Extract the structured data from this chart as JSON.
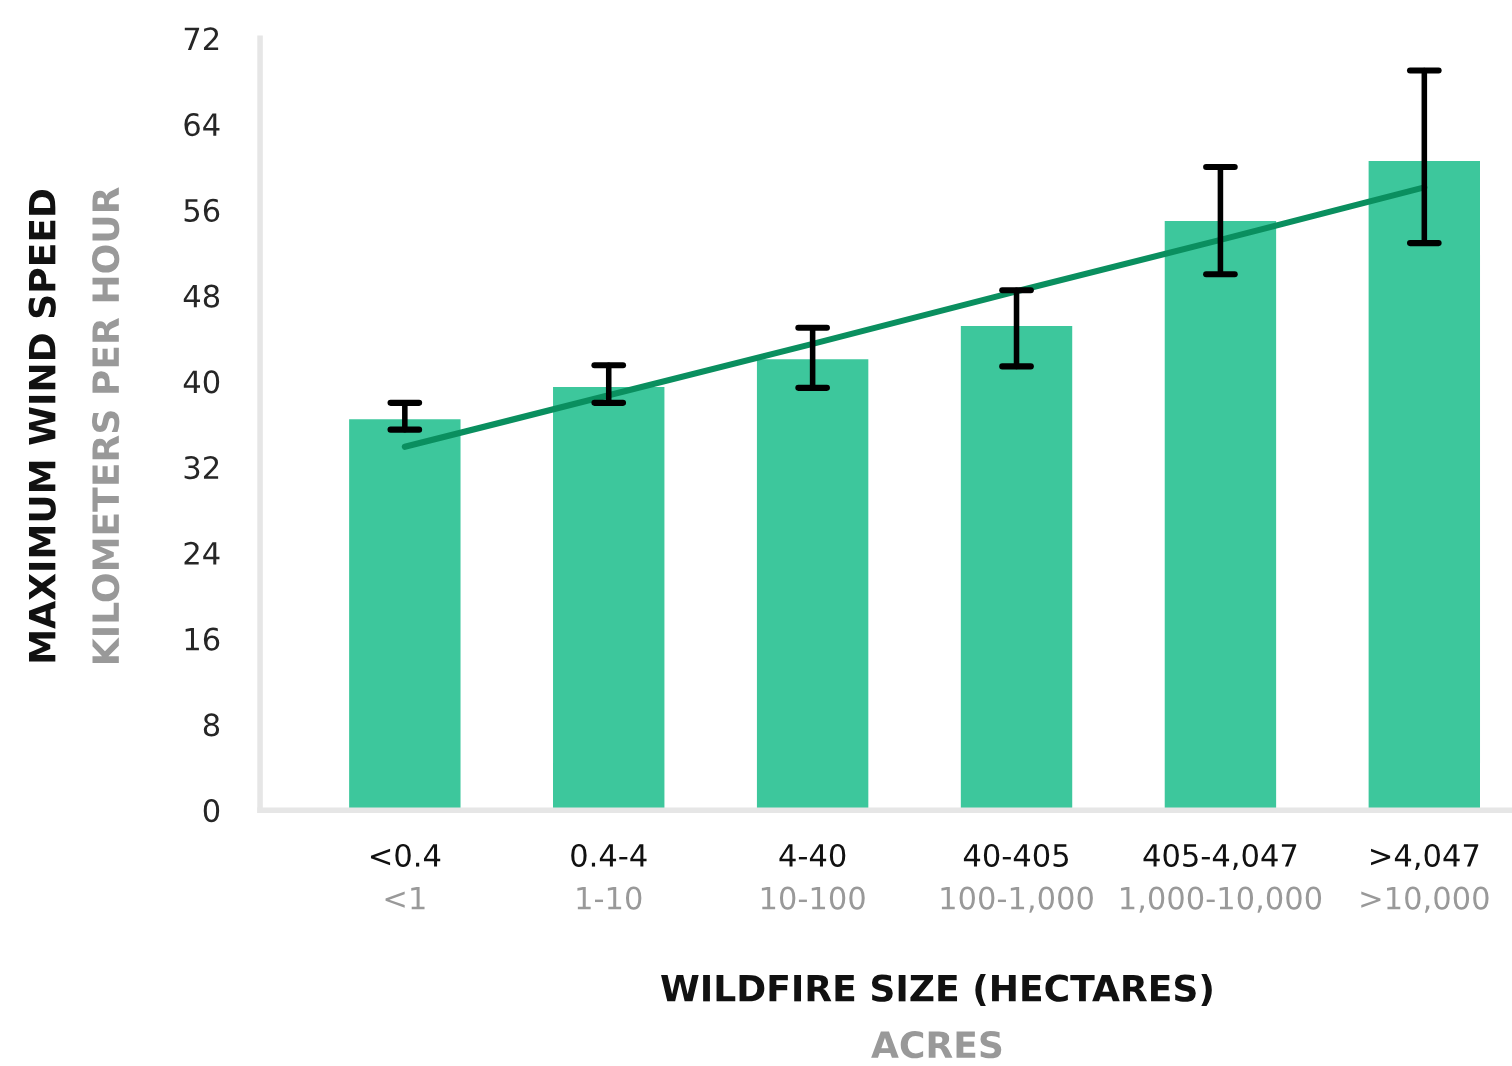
{
  "chart_data": {
    "type": "bar",
    "xlabel": "WILDFIRE SIZE (HECTARES)",
    "ylabel": "MAXIMUM WIND SPEED",
    "annotations": [
      "KILOMETERS PER HOUR",
      "ACRES"
    ],
    "categories": [
      "<0.4\n<1",
      "0.4-4\n1-10",
      "4-40\n10-100",
      "40-405\n100-1,000",
      "405-4,047\n1,000-10,000",
      ">4,047\n>10,000"
    ],
    "series": [
      {
        "color": "#3dc79c",
        "values": [
          36.6,
          39.6,
          42.2,
          45.3,
          55.1,
          60.7
        ],
        "errors": [
          [
            35.5,
            38.0
          ],
          [
            38.0,
            41.5
          ],
          [
            39.4,
            45.0
          ],
          [
            41.4,
            48.5
          ],
          [
            50.0,
            60.0
          ],
          [
            52.9,
            69.0
          ]
        ]
      },
      {
        "type": "line",
        "color": "#0a8f5f",
        "values": [
          33.9,
          38.7,
          43.5,
          48.4,
          53.2,
          58.1
        ]
      }
    ],
    "ylim": [
      0,
      72
    ],
    "yticks": [
      0,
      8,
      16,
      24,
      32,
      40,
      48,
      56,
      64,
      72
    ],
    "grid": false,
    "legend": false
  }
}
